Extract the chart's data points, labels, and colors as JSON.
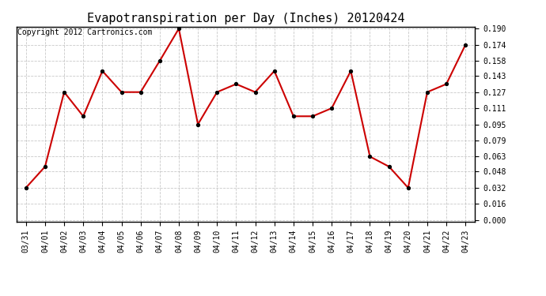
{
  "title": "Evapotranspiration per Day (Inches) 20120424",
  "copyright_text": "Copyright 2012 Cartronics.com",
  "x_labels": [
    "03/31",
    "04/01",
    "04/02",
    "04/03",
    "04/04",
    "04/05",
    "04/06",
    "04/07",
    "04/08",
    "04/09",
    "04/10",
    "04/11",
    "04/12",
    "04/13",
    "04/14",
    "04/15",
    "04/16",
    "04/17",
    "04/18",
    "04/19",
    "04/20",
    "04/21",
    "04/22",
    "04/23"
  ],
  "y_values": [
    0.032,
    0.053,
    0.127,
    0.103,
    0.148,
    0.127,
    0.127,
    0.158,
    0.19,
    0.095,
    0.127,
    0.135,
    0.127,
    0.148,
    0.103,
    0.103,
    0.111,
    0.148,
    0.063,
    0.053,
    0.032,
    0.127,
    0.135,
    0.174
  ],
  "line_color": "#cc0000",
  "marker": "o",
  "marker_size": 3,
  "marker_color": "#000000",
  "ylim_min": 0.0,
  "ylim_max": 0.19,
  "yticks": [
    0.0,
    0.016,
    0.032,
    0.048,
    0.063,
    0.079,
    0.095,
    0.111,
    0.127,
    0.143,
    0.158,
    0.174,
    0.19
  ],
  "background_color": "#ffffff",
  "plot_bg_color": "#ffffff",
  "grid_color": "#bbbbbb",
  "title_fontsize": 11,
  "tick_fontsize": 7,
  "copyright_fontsize": 7,
  "linewidth": 1.5
}
